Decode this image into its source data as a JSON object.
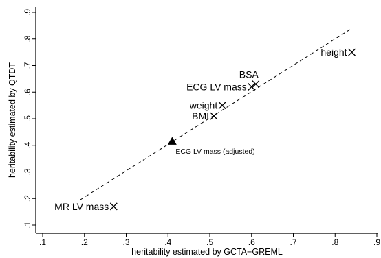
{
  "chart_data": {
    "type": "scatter",
    "xlabel": "heritability estimated by GCTA−GREML",
    "ylabel": "heritability estimated by QTDT",
    "xlim": [
      0.1,
      0.9
    ],
    "ylim": [
      0.1,
      0.9
    ],
    "x_ticks": [
      ".1",
      ".2",
      ".3",
      ".4",
      ".5",
      ".6",
      ".7",
      ".8",
      ".9"
    ],
    "y_ticks": [
      ".1",
      ".2",
      ".3",
      ".4",
      ".5",
      ".6",
      ".7",
      ".8",
      ".9"
    ],
    "grid": false,
    "points": [
      {
        "label": "height",
        "x": 0.84,
        "y": 0.75,
        "marker": "x",
        "label_side": "left",
        "label_size": "large"
      },
      {
        "label": "BSA",
        "x": 0.61,
        "y": 0.63,
        "marker": "x",
        "label_side": "above-left",
        "label_size": "large"
      },
      {
        "label": "ECG LV mass",
        "x": 0.6,
        "y": 0.62,
        "marker": "x",
        "label_side": "left",
        "label_size": "large"
      },
      {
        "label": "weight",
        "x": 0.53,
        "y": 0.55,
        "marker": "x",
        "label_side": "left",
        "label_size": "large"
      },
      {
        "label": "BMI",
        "x": 0.51,
        "y": 0.51,
        "marker": "x",
        "label_side": "left",
        "label_size": "large"
      },
      {
        "label": "ECG LV mass (adjusted)",
        "x": 0.41,
        "y": 0.415,
        "marker": "triangle",
        "label_side": "below-right",
        "label_size": "small"
      },
      {
        "label": "MR LV mass",
        "x": 0.27,
        "y": 0.17,
        "marker": "x",
        "label_side": "left",
        "label_size": "large"
      }
    ],
    "fit_line": {
      "style": "dashed",
      "x": [
        0.19,
        0.84
      ],
      "y": [
        0.195,
        0.84
      ]
    }
  }
}
